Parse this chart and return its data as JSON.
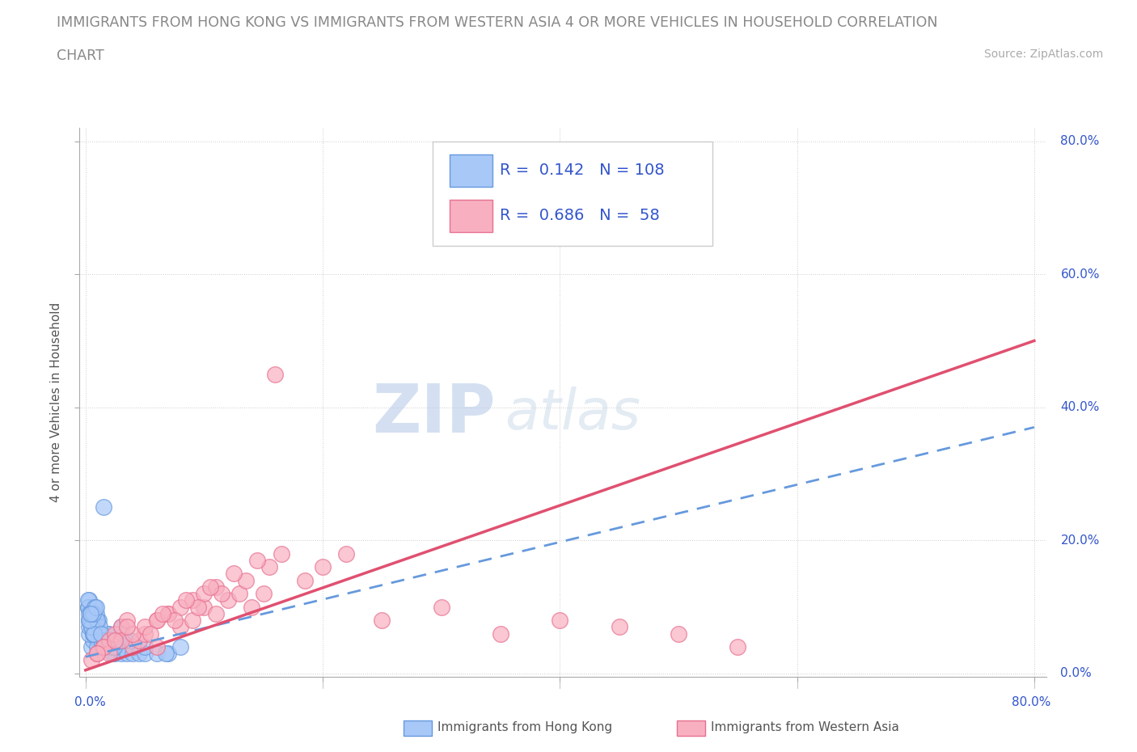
{
  "title_line1": "IMMIGRANTS FROM HONG KONG VS IMMIGRANTS FROM WESTERN ASIA 4 OR MORE VEHICLES IN HOUSEHOLD CORRELATION",
  "title_line2": "CHART",
  "source_text": "Source: ZipAtlas.com",
  "watermark_zip": "ZIP",
  "watermark_atlas": "atlas",
  "xlabel": "",
  "ylabel": "4 or more Vehicles in Household",
  "xlim": [
    -0.005,
    0.81
  ],
  "ylim": [
    -0.005,
    0.82
  ],
  "xtick_vals": [
    0.0,
    0.2,
    0.4,
    0.6,
    0.8
  ],
  "ytick_vals": [
    0.0,
    0.2,
    0.4,
    0.6,
    0.8
  ],
  "xtick_labels_left": [
    "0.0%"
  ],
  "xtick_labels_right": [
    "80.0%"
  ],
  "ytick_labels": [
    "20.0%",
    "40.0%",
    "60.0%",
    "80.0%"
  ],
  "hk_R": 0.142,
  "hk_N": 108,
  "wa_R": 0.686,
  "wa_N": 58,
  "hk_color": "#a8c8f8",
  "wa_color": "#f8b0c0",
  "hk_edge_color": "#6699dd",
  "wa_edge_color": "#e87090",
  "hk_line_color": "#6699dd",
  "wa_line_color": "#e05070",
  "bg_color": "#ffffff",
  "grid_color": "#cccccc",
  "title_color": "#888888",
  "legend_text_color": "#3355cc",
  "hk_scatter_x": [
    0.005,
    0.008,
    0.003,
    0.012,
    0.006,
    0.015,
    0.004,
    0.01,
    0.007,
    0.009,
    0.002,
    0.011,
    0.006,
    0.013,
    0.008,
    0.016,
    0.005,
    0.018,
    0.007,
    0.01,
    0.003,
    0.014,
    0.009,
    0.006,
    0.02,
    0.004,
    0.012,
    0.008,
    0.017,
    0.005,
    0.022,
    0.007,
    0.011,
    0.003,
    0.015,
    0.009,
    0.025,
    0.006,
    0.013,
    0.019,
    0.004,
    0.01,
    0.008,
    0.023,
    0.005,
    0.016,
    0.007,
    0.028,
    0.011,
    0.003,
    0.02,
    0.006,
    0.014,
    0.009,
    0.03,
    0.005,
    0.018,
    0.012,
    0.002,
    0.025,
    0.008,
    0.035,
    0.006,
    0.015,
    0.01,
    0.004,
    0.022,
    0.007,
    0.04,
    0.013,
    0.003,
    0.019,
    0.008,
    0.045,
    0.005,
    0.028,
    0.011,
    0.002,
    0.016,
    0.05,
    0.007,
    0.033,
    0.009,
    0.004,
    0.024,
    0.006,
    0.06,
    0.012,
    0.003,
    0.038,
    0.008,
    0.07,
    0.005,
    0.015,
    0.01,
    0.004,
    0.08,
    0.007,
    0.02,
    0.003,
    0.013,
    0.006,
    0.03,
    0.009,
    0.05,
    0.004,
    0.068,
    0.015
  ],
  "hk_scatter_y": [
    0.04,
    0.06,
    0.08,
    0.05,
    0.07,
    0.04,
    0.09,
    0.05,
    0.06,
    0.07,
    0.1,
    0.04,
    0.08,
    0.05,
    0.06,
    0.04,
    0.07,
    0.05,
    0.09,
    0.06,
    0.11,
    0.04,
    0.07,
    0.05,
    0.04,
    0.08,
    0.06,
    0.1,
    0.05,
    0.09,
    0.04,
    0.07,
    0.05,
    0.06,
    0.04,
    0.08,
    0.03,
    0.07,
    0.05,
    0.06,
    0.09,
    0.04,
    0.07,
    0.03,
    0.08,
    0.05,
    0.1,
    0.04,
    0.06,
    0.07,
    0.05,
    0.09,
    0.04,
    0.07,
    0.03,
    0.08,
    0.05,
    0.06,
    0.1,
    0.04,
    0.07,
    0.03,
    0.06,
    0.05,
    0.08,
    0.09,
    0.04,
    0.07,
    0.03,
    0.05,
    0.08,
    0.06,
    0.1,
    0.03,
    0.07,
    0.05,
    0.08,
    0.11,
    0.04,
    0.03,
    0.07,
    0.05,
    0.09,
    0.08,
    0.04,
    0.06,
    0.03,
    0.07,
    0.09,
    0.05,
    0.1,
    0.03,
    0.07,
    0.05,
    0.08,
    0.09,
    0.04,
    0.06,
    0.05,
    0.08,
    0.06,
    0.09,
    0.07,
    0.1,
    0.04,
    0.09,
    0.03,
    0.25
  ],
  "wa_scatter_x": [
    0.005,
    0.01,
    0.015,
    0.02,
    0.025,
    0.03,
    0.035,
    0.04,
    0.045,
    0.05,
    0.06,
    0.07,
    0.08,
    0.09,
    0.1,
    0.11,
    0.12,
    0.13,
    0.14,
    0.15,
    0.02,
    0.03,
    0.04,
    0.05,
    0.06,
    0.07,
    0.08,
    0.09,
    0.1,
    0.11,
    0.055,
    0.075,
    0.095,
    0.115,
    0.135,
    0.155,
    0.015,
    0.035,
    0.065,
    0.085,
    0.105,
    0.125,
    0.145,
    0.165,
    0.185,
    0.2,
    0.22,
    0.25,
    0.3,
    0.35,
    0.4,
    0.45,
    0.5,
    0.55,
    0.01,
    0.025,
    0.06,
    0.16
  ],
  "wa_scatter_y": [
    0.02,
    0.03,
    0.04,
    0.05,
    0.06,
    0.07,
    0.08,
    0.04,
    0.05,
    0.06,
    0.08,
    0.09,
    0.07,
    0.08,
    0.1,
    0.09,
    0.11,
    0.12,
    0.1,
    0.12,
    0.03,
    0.05,
    0.06,
    0.07,
    0.08,
    0.09,
    0.1,
    0.11,
    0.12,
    0.13,
    0.06,
    0.08,
    0.1,
    0.12,
    0.14,
    0.16,
    0.04,
    0.07,
    0.09,
    0.11,
    0.13,
    0.15,
    0.17,
    0.18,
    0.14,
    0.16,
    0.18,
    0.08,
    0.1,
    0.06,
    0.08,
    0.07,
    0.06,
    0.04,
    0.03,
    0.05,
    0.04,
    0.45
  ],
  "hk_trend_x": [
    0.0,
    0.8
  ],
  "hk_trend_y": [
    0.025,
    0.37
  ],
  "wa_trend_x": [
    0.0,
    0.8
  ],
  "wa_trend_y": [
    0.005,
    0.5
  ]
}
